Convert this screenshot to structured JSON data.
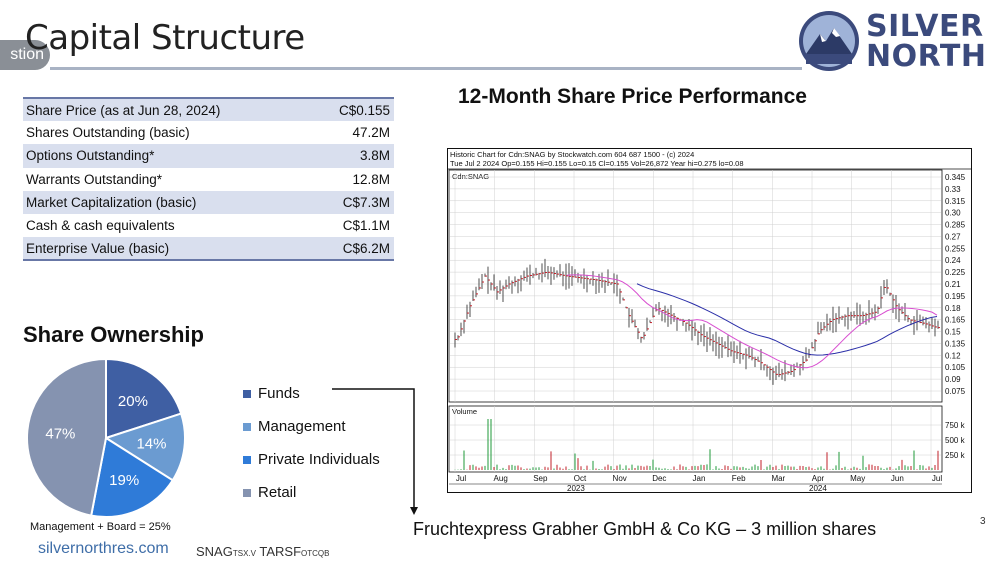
{
  "header": {
    "tab_fragment": "stion",
    "title": "Capital Structure",
    "logo_line1": "SILVER",
    "logo_line2": "NORTH"
  },
  "capital_table": {
    "rows": [
      {
        "label": "Share Price (as at Jun 28, 2024)",
        "value": "C$0.155"
      },
      {
        "label": "Shares Outstanding (basic)",
        "value": "47.2M"
      },
      {
        "label": "Options Outstanding*",
        "value": "3.8M"
      },
      {
        "label": "Warrants Outstanding*",
        "value": "12.8M"
      },
      {
        "label": "Market Capitalization (basic)",
        "value": "C$7.3M"
      },
      {
        "label": "Cash & cash equivalents",
        "value": "C$1.1M"
      },
      {
        "label": "Enterprise Value (basic)",
        "value": "C$6.2M"
      }
    ]
  },
  "chart_title": "12-Month Share Price Performance",
  "stock_chart": {
    "header_line1": "Historic Chart for Cdn:SNAG by Stockwatch.com 604 687 1500 - (c) 2024",
    "header_line2": "Tue Jul  2 2024  Op=0.155  Hi=0.155  Lo=0.15  Cl=0.155  Vol=26,872  Year hi=0.275  lo=0.08",
    "symbol_label": "Cdn:SNAG",
    "volume_label": "Volume",
    "price_ticks": [
      "0.345",
      "0.33",
      "0.315",
      "0.30",
      "0.285",
      "0.27",
      "0.255",
      "0.24",
      "0.225",
      "0.21",
      "0.195",
      "0.18",
      "0.165",
      "0.15",
      "0.135",
      "0.12",
      "0.105",
      "0.09",
      "0.075"
    ],
    "volume_ticks": [
      "750 k",
      "500 k",
      "250 k"
    ],
    "month_labels": [
      "Jul",
      "Aug",
      "Sep",
      "Oct",
      "Nov",
      "Dec",
      "Jan",
      "Feb",
      "Mar",
      "Apr",
      "May",
      "Jun",
      "Jul"
    ],
    "year_labels": [
      "2023",
      "2024"
    ]
  },
  "ownership": {
    "title": "Share Ownership",
    "legend": [
      {
        "label": "Funds",
        "color": "#3f5fa3"
      },
      {
        "label": "Management",
        "color": "#6b9bd1"
      },
      {
        "label": "Private Individuals",
        "color": "#2f7bd8"
      },
      {
        "label": "Retail",
        "color": "#8593b0"
      }
    ],
    "slices": [
      {
        "name": "Funds",
        "value": 20,
        "label": "20%",
        "color": "#3f5fa3"
      },
      {
        "name": "Management",
        "value": 14,
        "label": "14%",
        "color": "#6b9bd1"
      },
      {
        "name": "Private Individuals",
        "value": 19,
        "label": "19%",
        "color": "#2f7bd8"
      },
      {
        "name": "Retail",
        "value": 47,
        "label": "47%",
        "color": "#8593b0"
      }
    ],
    "note": "Management + Board = 25%"
  },
  "chart_data": [
    {
      "type": "pie",
      "title": "Share Ownership",
      "categories": [
        "Funds",
        "Management",
        "Private Individuals",
        "Retail"
      ],
      "values": [
        20,
        14,
        19,
        47
      ]
    }
  ],
  "shares_note": "Fruchtexpress Grabher GmbH & Co KG – 3 million shares",
  "footer": {
    "url": "silvernorthres.com",
    "ticker1": "SNAG",
    "ticker1_sub": "TSX.V",
    "ticker2": "TARSF",
    "ticker2_sub": "OTCQB"
  },
  "page_number": "3"
}
